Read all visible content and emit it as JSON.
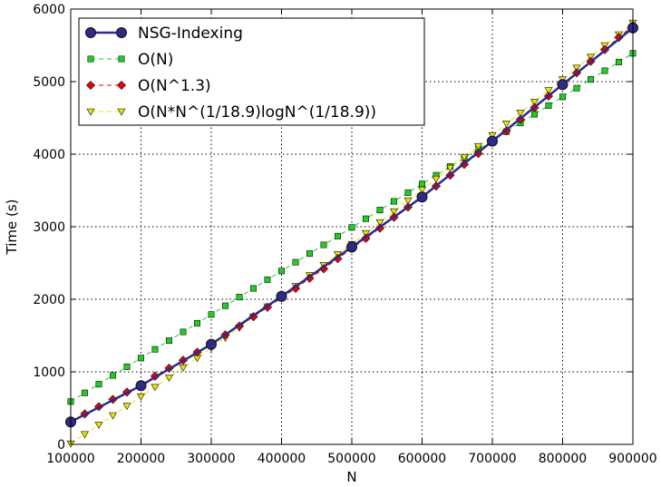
{
  "chart_data": {
    "type": "line",
    "xlabel": "N",
    "ylabel": "Time (s)",
    "xlim": [
      100000,
      900000
    ],
    "ylim": [
      0,
      6000
    ],
    "xticks": [
      100000,
      200000,
      300000,
      400000,
      500000,
      600000,
      700000,
      800000,
      900000
    ],
    "yticks": [
      0,
      1000,
      2000,
      3000,
      4000,
      5000,
      6000
    ],
    "grid": "dotted",
    "legend_position": "top-left",
    "series": [
      {
        "name": "NSG-Indexing",
        "color": "#2e2a88",
        "marker": "circle",
        "line": "solid",
        "x": [
          100000,
          200000,
          300000,
          400000,
          500000,
          600000,
          700000,
          800000,
          900000
        ],
        "y": [
          310,
          810,
          1380,
          2040,
          2720,
          3410,
          4180,
          4960,
          5740
        ]
      },
      {
        "name": "O(N)",
        "color": "#22cc22",
        "marker": "square",
        "line": "dashed",
        "x": [
          100000,
          120000,
          140000,
          160000,
          180000,
          200000,
          220000,
          240000,
          260000,
          280000,
          300000,
          320000,
          340000,
          360000,
          380000,
          400000,
          420000,
          440000,
          460000,
          480000,
          500000,
          520000,
          540000,
          560000,
          580000,
          600000,
          620000,
          640000,
          660000,
          680000,
          700000,
          720000,
          740000,
          760000,
          780000,
          800000,
          820000,
          840000,
          860000,
          880000,
          900000
        ],
        "y": [
          590,
          710,
          830,
          950,
          1070,
          1190,
          1310,
          1430,
          1550,
          1670,
          1790,
          1910,
          2030,
          2150,
          2270,
          2390,
          2510,
          2630,
          2750,
          2870,
          2990,
          3110,
          3230,
          3350,
          3470,
          3590,
          3710,
          3830,
          3950,
          4070,
          4190,
          4310,
          4430,
          4550,
          4670,
          4790,
          4910,
          5030,
          5150,
          5270,
          5390
        ]
      },
      {
        "name": "O(N^1.3)",
        "color": "#ee0000",
        "marker": "diamond",
        "line": "dashed",
        "x": [
          100000,
          120000,
          140000,
          160000,
          180000,
          200000,
          220000,
          240000,
          260000,
          280000,
          300000,
          320000,
          340000,
          360000,
          380000,
          400000,
          420000,
          440000,
          460000,
          480000,
          500000,
          520000,
          540000,
          560000,
          580000,
          600000,
          620000,
          640000,
          660000,
          680000,
          700000,
          720000,
          740000,
          760000,
          780000,
          800000,
          820000,
          840000,
          860000,
          880000,
          900000
        ],
        "y": [
          320,
          420,
          520,
          620,
          720,
          820,
          940,
          1050,
          1160,
          1270,
          1390,
          1510,
          1630,
          1760,
          1890,
          2020,
          2150,
          2290,
          2420,
          2560,
          2700,
          2840,
          2980,
          3130,
          3270,
          3420,
          3560,
          3710,
          3860,
          4010,
          4170,
          4320,
          4480,
          4640,
          4800,
          4960,
          5120,
          5280,
          5440,
          5610,
          5770
        ]
      },
      {
        "name": "O(N*N^(1/18.9)logN^(1/18.9))",
        "color": "#e6e600",
        "marker": "triangle-down",
        "line": "dashed",
        "x": [
          100000,
          120000,
          140000,
          160000,
          180000,
          200000,
          220000,
          240000,
          260000,
          280000,
          300000,
          320000,
          340000,
          360000,
          380000,
          400000,
          420000,
          440000,
          460000,
          480000,
          500000,
          520000,
          540000,
          560000,
          580000,
          600000,
          620000,
          640000,
          660000,
          680000,
          700000,
          720000,
          740000,
          760000,
          780000,
          800000,
          820000,
          840000,
          860000,
          880000,
          900000
        ],
        "y": [
          10,
          140,
          270,
          400,
          530,
          660,
          790,
          920,
          1060,
          1190,
          1330,
          1470,
          1610,
          1760,
          1900,
          2040,
          2180,
          2330,
          2470,
          2620,
          2760,
          2910,
          3060,
          3210,
          3360,
          3510,
          3660,
          3810,
          3960,
          4110,
          4260,
          4420,
          4570,
          4720,
          4880,
          5030,
          5190,
          5340,
          5500,
          5650,
          5810
        ]
      }
    ]
  }
}
